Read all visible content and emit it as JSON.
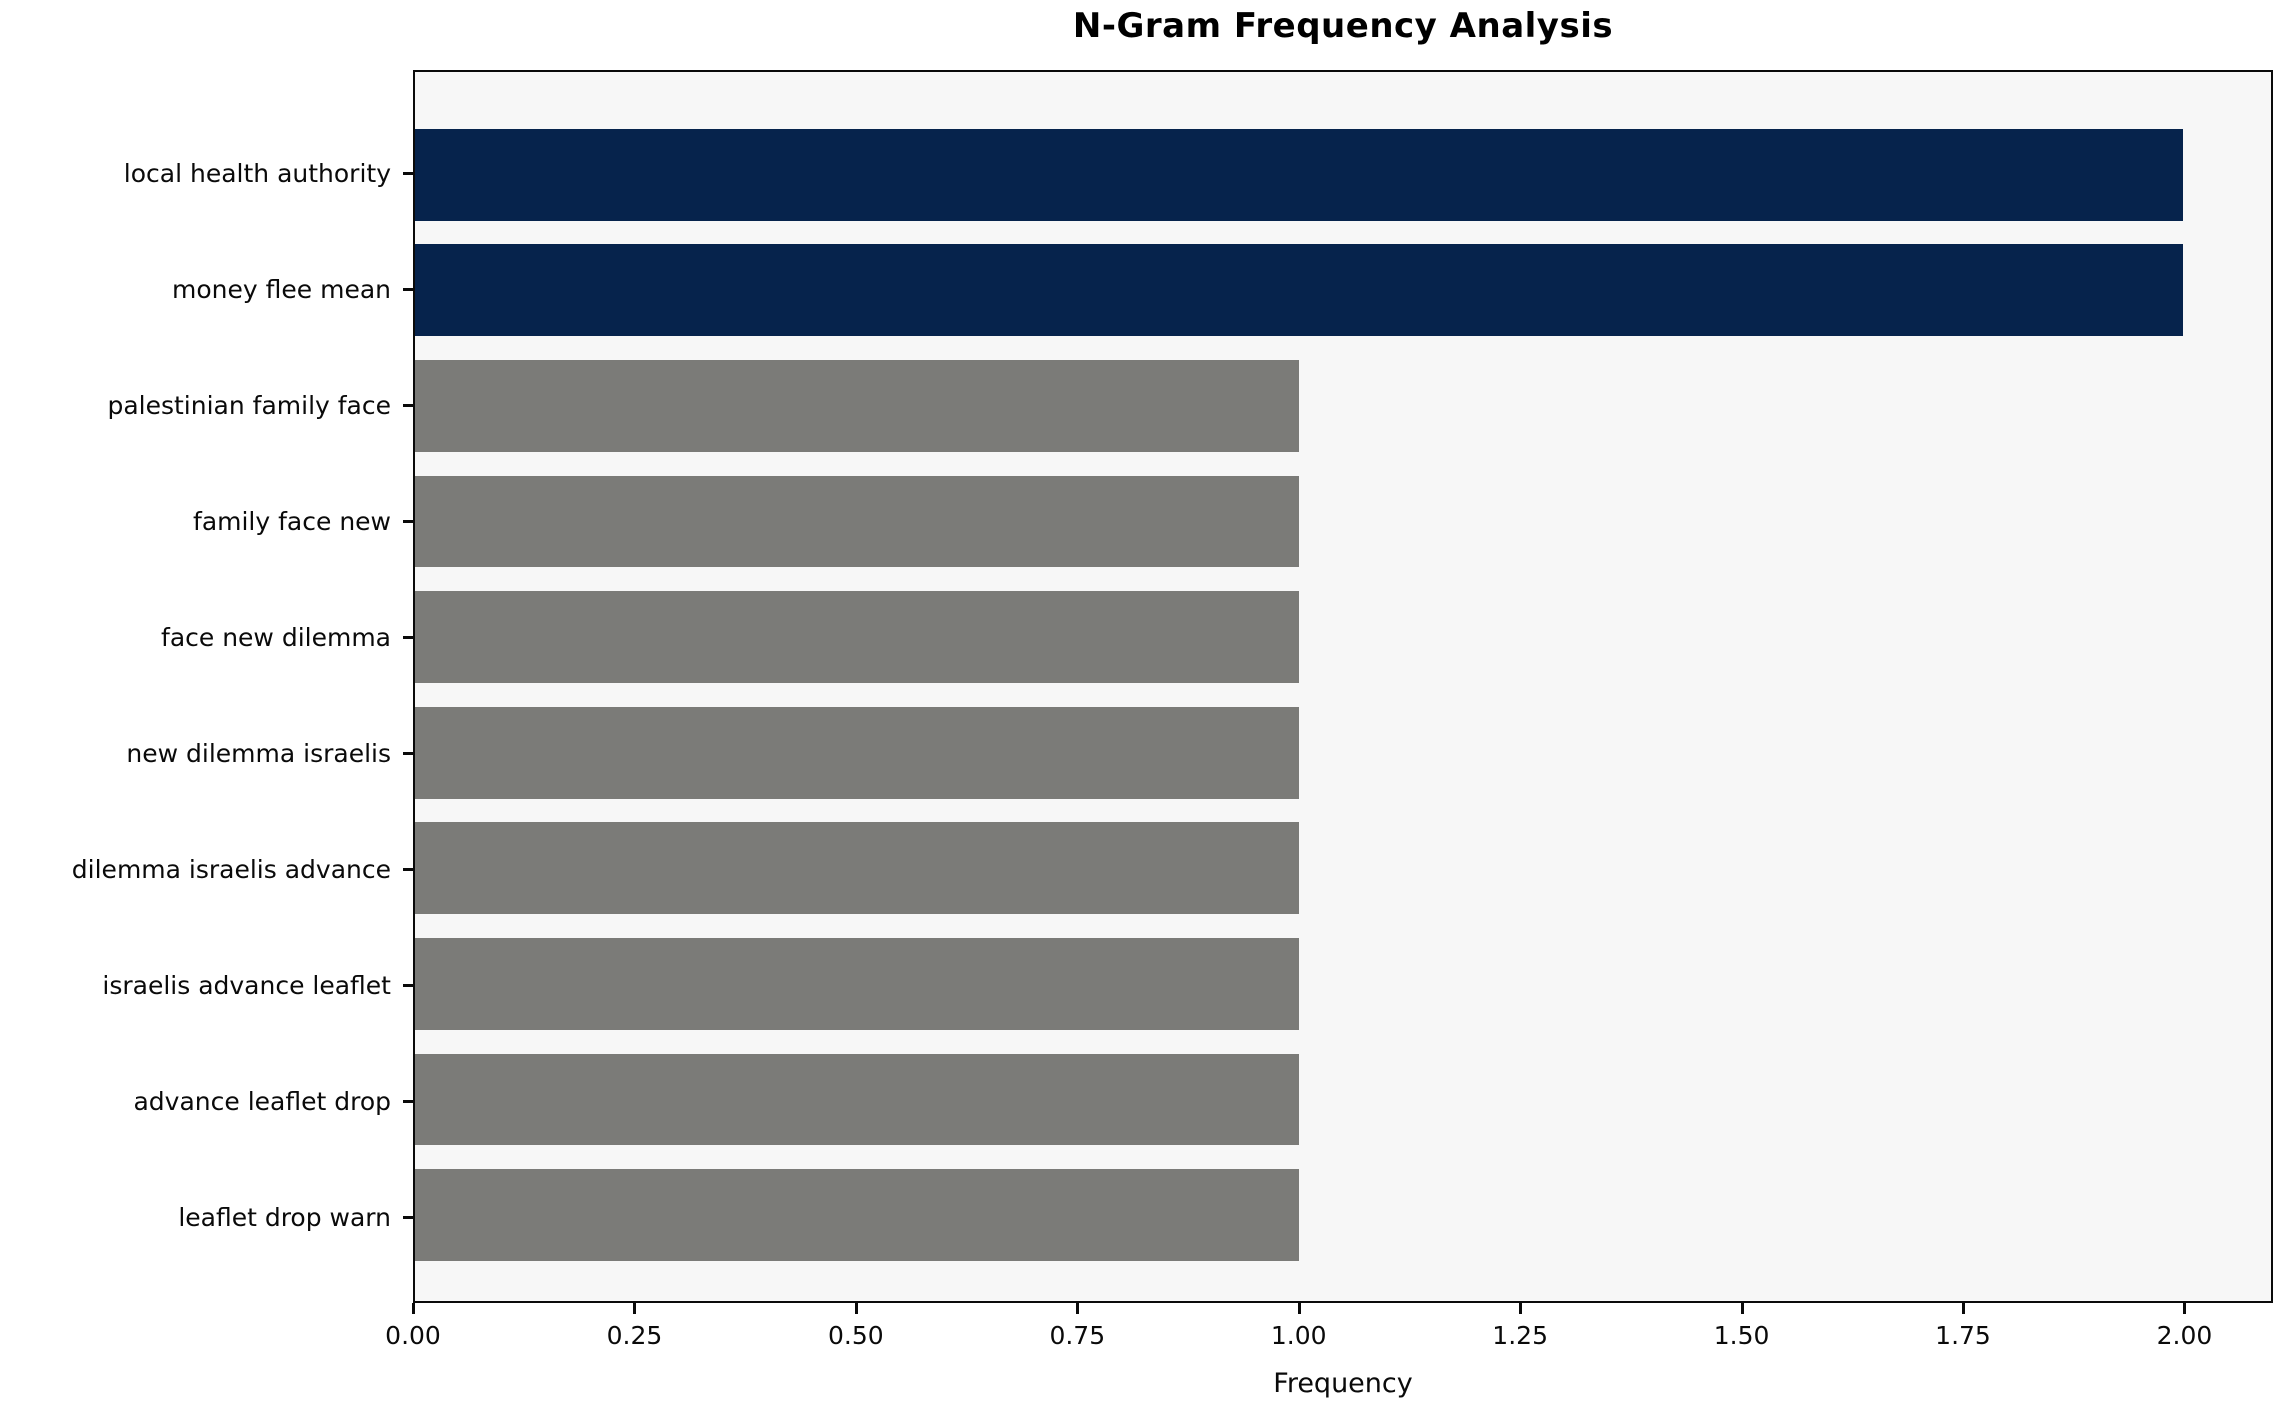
{
  "chart_data": {
    "type": "bar",
    "orientation": "horizontal",
    "title": "N-Gram Frequency Analysis",
    "xlabel": "Frequency",
    "ylabel": "",
    "categories": [
      "local health authority",
      "money flee mean",
      "palestinian family face",
      "family face new",
      "face new dilemma",
      "new dilemma israelis",
      "dilemma israelis advance",
      "israelis advance leaflet",
      "advance leaflet drop",
      "leaflet drop warn"
    ],
    "values": [
      2,
      2,
      1,
      1,
      1,
      1,
      1,
      1,
      1,
      1
    ],
    "bar_colors": [
      "#06234c",
      "#06234c",
      "#7b7b78",
      "#7b7b78",
      "#7b7b78",
      "#7b7b78",
      "#7b7b78",
      "#7b7b78",
      "#7b7b78",
      "#7b7b78"
    ],
    "x_ticks": [
      {
        "value": 0.0,
        "label": "0.00"
      },
      {
        "value": 0.25,
        "label": "0.25"
      },
      {
        "value": 0.5,
        "label": "0.50"
      },
      {
        "value": 0.75,
        "label": "0.75"
      },
      {
        "value": 1.0,
        "label": "1.00"
      },
      {
        "value": 1.25,
        "label": "1.25"
      },
      {
        "value": 1.5,
        "label": "1.50"
      },
      {
        "value": 1.75,
        "label": "1.75"
      },
      {
        "value": 2.0,
        "label": "2.00"
      }
    ],
    "xlim": [
      0,
      2.1
    ],
    "grid": false,
    "legend": null,
    "colors": {
      "highlight_bar": "#06234c",
      "default_bar": "#7b7b78",
      "plot_background": "#f7f7f7",
      "figure_background": "#ffffff",
      "spine": "#0a0a0a"
    }
  }
}
